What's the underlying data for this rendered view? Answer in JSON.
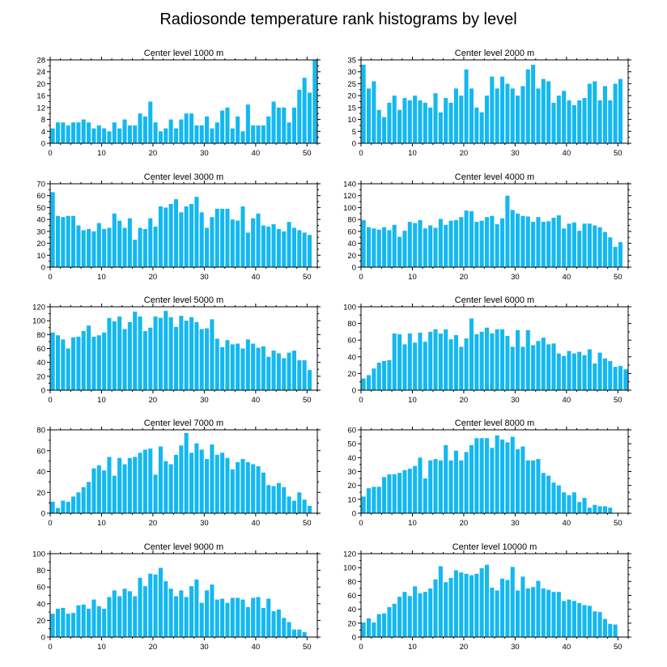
{
  "title": "Radiosonde temperature rank histograms by level",
  "colors": {
    "bar": "#14b8f0",
    "axis": "#000000",
    "background": "#ffffff"
  },
  "chart_data": [
    {
      "type": "bar",
      "title": "Center level 1000 m",
      "xlim": [
        0,
        52
      ],
      "ylim": [
        0,
        28
      ],
      "xticks": [
        0,
        10,
        20,
        30,
        40,
        50
      ],
      "yticks": [
        0,
        4,
        8,
        12,
        16,
        20,
        24,
        28
      ],
      "values": [
        5,
        7,
        7,
        6,
        7,
        7,
        8,
        7,
        5,
        6,
        5,
        4,
        7,
        5,
        8,
        6,
        6,
        10,
        9,
        14,
        7,
        4,
        5,
        8,
        5,
        8,
        10,
        10,
        6,
        6,
        9,
        5,
        7,
        11,
        12,
        5,
        9,
        4,
        13,
        6,
        6,
        6,
        9,
        14,
        12,
        12,
        7,
        12,
        18,
        22,
        17,
        28
      ]
    },
    {
      "type": "bar",
      "title": "Center level 2000 m",
      "xlim": [
        0,
        52
      ],
      "ylim": [
        0,
        35
      ],
      "xticks": [
        0,
        10,
        20,
        30,
        40,
        50
      ],
      "yticks": [
        0,
        5,
        10,
        15,
        20,
        25,
        30,
        35
      ],
      "values": [
        33,
        23,
        26,
        14,
        11,
        17,
        20,
        14,
        19,
        18,
        20,
        18,
        17,
        15,
        21,
        13,
        19,
        17,
        23,
        20,
        31,
        23,
        15,
        13,
        20,
        28,
        23,
        28,
        25,
        23,
        20,
        24,
        31,
        33,
        23,
        27,
        26,
        17,
        20,
        22,
        18,
        16,
        18,
        19,
        25,
        26,
        18,
        24,
        18,
        25,
        27
      ]
    },
    {
      "type": "bar",
      "title": "Center level 3000 m",
      "xlim": [
        0,
        52
      ],
      "ylim": [
        0,
        70
      ],
      "xticks": [
        0,
        10,
        20,
        30,
        40,
        50
      ],
      "yticks": [
        0,
        10,
        20,
        30,
        40,
        50,
        60,
        70
      ],
      "values": [
        63,
        43,
        42,
        43,
        43,
        35,
        31,
        32,
        30,
        37,
        32,
        33,
        45,
        39,
        33,
        41,
        23,
        33,
        32,
        41,
        34,
        51,
        50,
        53,
        57,
        46,
        51,
        53,
        59,
        46,
        33,
        42,
        49,
        49,
        49,
        40,
        39,
        51,
        29,
        41,
        45,
        35,
        34,
        36,
        32,
        30,
        38,
        33,
        31,
        29,
        27
      ]
    },
    {
      "type": "bar",
      "title": "Center level 4000 m",
      "xlim": [
        0,
        52
      ],
      "ylim": [
        0,
        140
      ],
      "xticks": [
        0,
        10,
        20,
        30,
        40,
        50
      ],
      "yticks": [
        0,
        20,
        40,
        60,
        80,
        100,
        120,
        140
      ],
      "values": [
        79,
        67,
        65,
        63,
        67,
        62,
        71,
        51,
        61,
        76,
        74,
        79,
        65,
        70,
        66,
        81,
        71,
        78,
        79,
        84,
        95,
        94,
        76,
        78,
        84,
        86,
        72,
        82,
        120,
        96,
        90,
        86,
        85,
        76,
        84,
        76,
        77,
        83,
        87,
        65,
        73,
        75,
        61,
        73,
        73,
        70,
        67,
        59,
        50,
        34,
        42
      ]
    },
    {
      "type": "bar",
      "title": "Center level 5000 m",
      "xlim": [
        0,
        52
      ],
      "ylim": [
        0,
        120
      ],
      "xticks": [
        0,
        10,
        20,
        30,
        40,
        50
      ],
      "yticks": [
        0,
        20,
        40,
        60,
        80,
        100,
        120
      ],
      "values": [
        83,
        79,
        73,
        60,
        76,
        77,
        85,
        93,
        77,
        79,
        83,
        104,
        99,
        106,
        88,
        98,
        113,
        106,
        85,
        90,
        106,
        104,
        114,
        105,
        91,
        107,
        100,
        105,
        98,
        88,
        89,
        102,
        74,
        62,
        72,
        66,
        67,
        60,
        73,
        67,
        61,
        63,
        48,
        57,
        53,
        46,
        54,
        57,
        43,
        43,
        29
      ]
    },
    {
      "type": "bar",
      "title": "Center level 6000 m",
      "xlim": [
        0,
        52
      ],
      "ylim": [
        0,
        100
      ],
      "xticks": [
        0,
        10,
        20,
        30,
        40,
        50
      ],
      "yticks": [
        0,
        20,
        40,
        60,
        80,
        100
      ],
      "values": [
        14,
        18,
        26,
        33,
        35,
        36,
        68,
        67,
        55,
        68,
        57,
        69,
        58,
        70,
        73,
        68,
        73,
        61,
        66,
        52,
        62,
        86,
        67,
        70,
        75,
        68,
        73,
        73,
        65,
        52,
        72,
        52,
        72,
        54,
        59,
        63,
        55,
        56,
        44,
        41,
        47,
        44,
        46,
        42,
        49,
        32,
        45,
        38,
        35,
        28,
        29,
        25
      ]
    },
    {
      "type": "bar",
      "title": "Center level 7000 m",
      "xlim": [
        0,
        52
      ],
      "ylim": [
        0,
        80
      ],
      "xticks": [
        0,
        10,
        20,
        30,
        40,
        50
      ],
      "yticks": [
        0,
        20,
        40,
        60,
        80
      ],
      "values": [
        11,
        5,
        12,
        11,
        16,
        20,
        25,
        30,
        43,
        46,
        41,
        54,
        36,
        53,
        47,
        53,
        54,
        58,
        61,
        62,
        37,
        64,
        50,
        47,
        56,
        65,
        77,
        58,
        67,
        61,
        52,
        66,
        56,
        58,
        53,
        42,
        49,
        52,
        49,
        47,
        45,
        39,
        27,
        26,
        29,
        25,
        16,
        12,
        20,
        13,
        7
      ]
    },
    {
      "type": "bar",
      "title": "Center level 8000 m",
      "xlim": [
        0,
        52
      ],
      "ylim": [
        0,
        60
      ],
      "xticks": [
        0,
        10,
        20,
        30,
        40,
        50
      ],
      "yticks": [
        0,
        10,
        20,
        30,
        40,
        50,
        60
      ],
      "values": [
        12,
        18,
        19,
        19,
        26,
        28,
        28,
        29,
        31,
        32,
        34,
        40,
        25,
        38,
        39,
        38,
        49,
        38,
        45,
        38,
        44,
        49,
        54,
        54,
        54,
        47,
        56,
        53,
        51,
        55,
        46,
        48,
        38,
        38,
        39,
        29,
        27,
        22,
        20,
        15,
        13,
        15,
        8,
        11,
        4,
        6,
        5,
        5,
        4
      ]
    },
    {
      "type": "bar",
      "title": "Center level 9000 m",
      "xlim": [
        0,
        52
      ],
      "ylim": [
        0,
        100
      ],
      "xticks": [
        0,
        10,
        20,
        30,
        40,
        50
      ],
      "yticks": [
        0,
        20,
        40,
        60,
        80,
        100
      ],
      "values": [
        28,
        34,
        35,
        28,
        29,
        38,
        39,
        34,
        45,
        37,
        34,
        48,
        56,
        49,
        58,
        55,
        49,
        71,
        61,
        76,
        75,
        83,
        67,
        58,
        49,
        56,
        48,
        61,
        69,
        41,
        56,
        63,
        45,
        46,
        41,
        47,
        47,
        45,
        36,
        47,
        48,
        35,
        46,
        31,
        33,
        23,
        18,
        9,
        9,
        6
      ]
    },
    {
      "type": "bar",
      "title": "Center level 10000 m",
      "xlim": [
        0,
        52
      ],
      "ylim": [
        0,
        120
      ],
      "xticks": [
        0,
        10,
        20,
        30,
        40,
        50
      ],
      "yticks": [
        0,
        20,
        40,
        60,
        80,
        100,
        120
      ],
      "values": [
        21,
        27,
        21,
        33,
        34,
        43,
        48,
        58,
        65,
        59,
        73,
        63,
        65,
        70,
        83,
        102,
        79,
        85,
        96,
        93,
        91,
        89,
        91,
        99,
        104,
        71,
        67,
        84,
        82,
        101,
        67,
        87,
        70,
        72,
        81,
        70,
        68,
        65,
        65,
        52,
        54,
        52,
        49,
        46,
        45,
        37,
        36,
        26,
        19,
        18
      ]
    }
  ]
}
